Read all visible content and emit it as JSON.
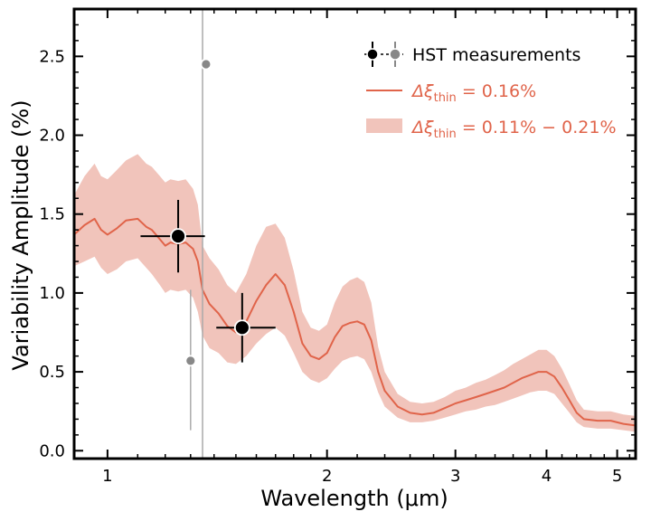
{
  "chart_data": {
    "type": "line",
    "xlabel": "Wavelength (μm)",
    "ylabel": "Variability Amplitude (%)",
    "xscale": "log",
    "xlim": [
      0.9,
      5.3
    ],
    "ylim": [
      -0.05,
      2.8
    ],
    "x_ticks": [
      1,
      2,
      3,
      4,
      5
    ],
    "y_ticks": [
      0.0,
      0.5,
      1.0,
      1.5,
      2.0,
      2.5
    ],
    "x_tick_labels": [
      "1",
      "2",
      "3",
      "4",
      "5"
    ],
    "y_tick_labels": [
      "0.0",
      "0.5",
      "1.0",
      "1.5",
      "2.0",
      "2.5"
    ],
    "grid": false,
    "legend_position": "top-right",
    "colors": {
      "model": "#e0644a",
      "band": "#f1c4bb",
      "hst_black": "#000000",
      "hst_gray": "#888888",
      "vline": "#aaaaaa"
    },
    "legend": {
      "hst": "HST measurements",
      "model_prefix": "Δξ",
      "model_sub": "thin",
      "model_value": " = 0.16%",
      "band_prefix": "Δξ",
      "band_sub": "thin",
      "band_value": " = 0.11% − 0.21%"
    },
    "vertical_line": {
      "x": 1.35
    },
    "hst_points": [
      {
        "x": 1.25,
        "y": 1.36,
        "xerr": [
          0.14,
          0.11
        ],
        "yerr": 0.23,
        "style": "black"
      },
      {
        "x": 1.53,
        "y": 0.78,
        "xerr": [
          0.12,
          0.17
        ],
        "yerr": 0.22,
        "style": "black"
      },
      {
        "x": 1.365,
        "y": 2.45,
        "xerr": [
          0,
          0
        ],
        "yerr": 0.0,
        "style": "gray"
      },
      {
        "x": 1.3,
        "y": 0.57,
        "xerr": [
          0.02,
          0.02
        ],
        "yerr": 0.0,
        "style": "gray"
      }
    ],
    "gray_errorbar_line": {
      "x": 1.3,
      "y_low": 0.13,
      "y_high": 1.02
    },
    "series": [
      {
        "x": [
          0.9,
          0.93,
          0.96,
          0.98,
          1.0,
          1.03,
          1.06,
          1.1,
          1.13,
          1.15,
          1.18,
          1.2,
          1.22,
          1.25,
          1.28,
          1.31,
          1.33,
          1.35,
          1.38,
          1.42,
          1.46,
          1.5,
          1.55,
          1.6,
          1.65,
          1.7,
          1.75,
          1.8,
          1.85,
          1.9,
          1.95,
          2.0,
          2.05,
          2.1,
          2.15,
          2.2,
          2.25,
          2.3,
          2.35,
          2.4,
          2.5,
          2.6,
          2.7,
          2.8,
          2.9,
          3.0,
          3.1,
          3.2,
          3.3,
          3.4,
          3.5,
          3.6,
          3.7,
          3.8,
          3.9,
          4.0,
          4.1,
          4.2,
          4.3,
          4.4,
          4.5,
          4.7,
          4.9,
          5.1,
          5.3
        ],
        "y": [
          1.37,
          1.43,
          1.47,
          1.4,
          1.37,
          1.41,
          1.46,
          1.47,
          1.42,
          1.4,
          1.34,
          1.3,
          1.32,
          1.31,
          1.32,
          1.28,
          1.2,
          1.02,
          0.93,
          0.87,
          0.79,
          0.75,
          0.82,
          0.95,
          1.05,
          1.12,
          1.05,
          0.88,
          0.68,
          0.6,
          0.58,
          0.62,
          0.72,
          0.79,
          0.81,
          0.82,
          0.8,
          0.7,
          0.5,
          0.38,
          0.28,
          0.24,
          0.23,
          0.24,
          0.27,
          0.3,
          0.32,
          0.34,
          0.36,
          0.38,
          0.4,
          0.43,
          0.46,
          0.48,
          0.5,
          0.5,
          0.47,
          0.4,
          0.32,
          0.24,
          0.2,
          0.19,
          0.19,
          0.17,
          0.16
        ],
        "lower": [
          1.17,
          1.2,
          1.23,
          1.16,
          1.12,
          1.15,
          1.2,
          1.22,
          1.16,
          1.12,
          1.05,
          1.0,
          1.02,
          1.01,
          1.02,
          0.97,
          0.88,
          0.73,
          0.65,
          0.62,
          0.56,
          0.55,
          0.6,
          0.68,
          0.74,
          0.78,
          0.73,
          0.62,
          0.5,
          0.45,
          0.43,
          0.46,
          0.52,
          0.57,
          0.59,
          0.6,
          0.58,
          0.5,
          0.37,
          0.28,
          0.21,
          0.18,
          0.18,
          0.19,
          0.21,
          0.23,
          0.25,
          0.26,
          0.28,
          0.29,
          0.31,
          0.33,
          0.35,
          0.37,
          0.38,
          0.38,
          0.36,
          0.3,
          0.24,
          0.18,
          0.15,
          0.14,
          0.14,
          0.13,
          0.12
        ],
        "upper": [
          1.62,
          1.74,
          1.82,
          1.74,
          1.72,
          1.78,
          1.84,
          1.88,
          1.82,
          1.8,
          1.74,
          1.7,
          1.72,
          1.71,
          1.72,
          1.66,
          1.56,
          1.3,
          1.22,
          1.15,
          1.05,
          1.0,
          1.12,
          1.3,
          1.42,
          1.44,
          1.35,
          1.14,
          0.88,
          0.78,
          0.76,
          0.8,
          0.94,
          1.04,
          1.08,
          1.1,
          1.07,
          0.94,
          0.66,
          0.5,
          0.36,
          0.31,
          0.3,
          0.31,
          0.34,
          0.38,
          0.4,
          0.43,
          0.45,
          0.48,
          0.51,
          0.55,
          0.58,
          0.61,
          0.64,
          0.64,
          0.6,
          0.52,
          0.42,
          0.32,
          0.26,
          0.25,
          0.25,
          0.23,
          0.22
        ]
      }
    ]
  }
}
